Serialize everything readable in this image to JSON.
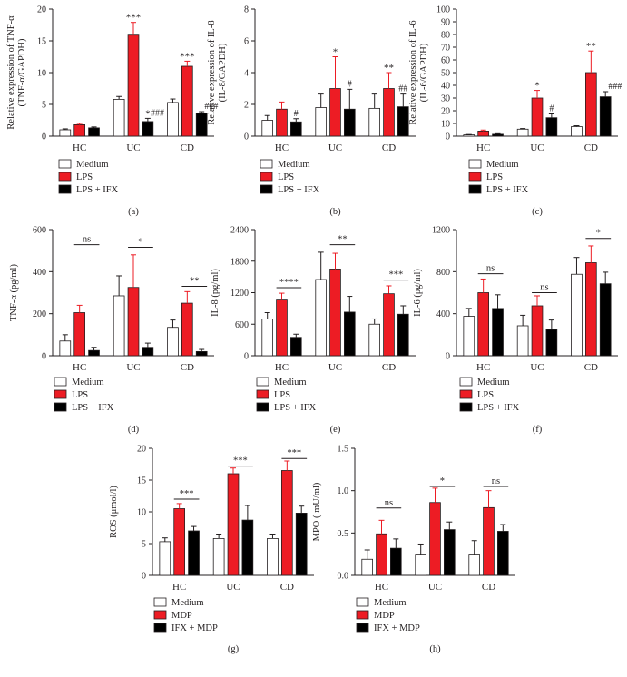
{
  "colors": {
    "medium": "#ffffff",
    "treat": "#ed1c24",
    "third": "#000000",
    "axis": "#231f20"
  },
  "chart_data": [
    {
      "panel_label": "(a)",
      "type": "bar",
      "ylabel_lines": [
        "Relative expression of TNF-α",
        "(TNF-α/GAPDH)"
      ],
      "ylim": [
        0,
        20
      ],
      "yticks": [
        0,
        5,
        10,
        15,
        20
      ],
      "categories": [
        "HC",
        "UC",
        "CD"
      ],
      "series": [
        {
          "name": "Medium",
          "values": [
            1.0,
            5.8,
            5.3
          ],
          "errors": [
            0.15,
            0.45,
            0.55
          ]
        },
        {
          "name": "LPS",
          "values": [
            1.8,
            15.9,
            11.0
          ],
          "errors": [
            0.2,
            2.0,
            0.8
          ]
        },
        {
          "name": "LPS + IFX",
          "values": [
            1.3,
            2.3,
            3.6
          ],
          "errors": [
            0.15,
            0.5,
            0.25
          ]
        }
      ],
      "annotations": [
        {
          "type": "star",
          "cat": 1,
          "series": 1,
          "text": "***"
        },
        {
          "type": "star",
          "cat": 1,
          "series": 2,
          "text": "*"
        },
        {
          "type": "star",
          "cat": 1,
          "series": 2,
          "text": "###",
          "dx": 0.06
        },
        {
          "type": "star",
          "cat": 2,
          "series": 1,
          "text": "***"
        },
        {
          "type": "star",
          "cat": 2,
          "series": 2,
          "text": "###",
          "dx": 0.06
        }
      ]
    },
    {
      "panel_label": "(b)",
      "type": "bar",
      "ylabel_lines": [
        "Relative expression of IL-8",
        "(IL-8/GAPDH)"
      ],
      "ylim": [
        0,
        8
      ],
      "yticks": [
        0,
        2,
        4,
        6,
        8
      ],
      "categories": [
        "HC",
        "UC",
        "CD"
      ],
      "series": [
        {
          "name": "Medium",
          "values": [
            1.0,
            1.8,
            1.75
          ],
          "errors": [
            0.3,
            0.85,
            0.9
          ]
        },
        {
          "name": "LPS",
          "values": [
            1.7,
            3.0,
            3.0
          ],
          "errors": [
            0.45,
            2.0,
            1.0
          ]
        },
        {
          "name": "LPS + IFX",
          "values": [
            0.9,
            1.7,
            1.85
          ],
          "errors": [
            0.2,
            1.25,
            0.8
          ]
        }
      ],
      "annotations": [
        {
          "type": "star",
          "cat": 0,
          "series": 2,
          "text": "#"
        },
        {
          "type": "star",
          "cat": 1,
          "series": 1,
          "text": "*"
        },
        {
          "type": "star",
          "cat": 1,
          "series": 2,
          "text": "#"
        },
        {
          "type": "star",
          "cat": 2,
          "series": 1,
          "text": "**"
        },
        {
          "type": "star",
          "cat": 2,
          "series": 2,
          "text": "##"
        }
      ]
    },
    {
      "panel_label": "(c)",
      "type": "bar",
      "ylabel_lines": [
        "Relative expression of IL-6",
        "(IL-6/GAPDH)"
      ],
      "ylim": [
        0,
        100
      ],
      "yticks": [
        0,
        10,
        20,
        30,
        40,
        50,
        60,
        70,
        80,
        90,
        100
      ],
      "categories": [
        "HC",
        "UC",
        "CD"
      ],
      "series": [
        {
          "name": "Medium",
          "values": [
            1.0,
            5.5,
            7.5
          ],
          "errors": [
            0.3,
            0.5,
            0.7
          ]
        },
        {
          "name": "LPS",
          "values": [
            4.0,
            30.0,
            50.0
          ],
          "errors": [
            0.8,
            6.0,
            17.0
          ]
        },
        {
          "name": "LPS + IFX",
          "values": [
            1.5,
            14.5,
            31.0
          ],
          "errors": [
            0.4,
            3.0,
            4.0
          ]
        }
      ],
      "annotations": [
        {
          "type": "star",
          "cat": 1,
          "series": 1,
          "text": "*"
        },
        {
          "type": "star",
          "cat": 1,
          "series": 2,
          "text": "#"
        },
        {
          "type": "star",
          "cat": 2,
          "series": 1,
          "text": "**"
        },
        {
          "type": "star",
          "cat": 2,
          "series": 2,
          "text": "###",
          "dx": 0.06
        }
      ]
    },
    {
      "panel_label": "(d)",
      "type": "bar",
      "ylabel_lines": [
        "TNF-α (pg/ml)"
      ],
      "ylim": [
        0,
        600
      ],
      "yticks": [
        0,
        200,
        400,
        600
      ],
      "categories": [
        "HC",
        "UC",
        "CD"
      ],
      "series": [
        {
          "name": "Medium",
          "values": [
            70,
            285,
            135
          ],
          "errors": [
            30,
            95,
            35
          ]
        },
        {
          "name": "LPS",
          "values": [
            205,
            325,
            250
          ],
          "errors": [
            35,
            155,
            55
          ]
        },
        {
          "name": "LPS + IFX",
          "values": [
            25,
            40,
            20
          ],
          "errors": [
            15,
            20,
            10
          ]
        }
      ],
      "annotations": [
        {
          "type": "bracket",
          "cat": 0,
          "text": "ns",
          "level": 0.88
        },
        {
          "type": "bracket",
          "cat": 1,
          "text": "*",
          "level": 0.86
        },
        {
          "type": "bracket",
          "cat": 2,
          "text": "**",
          "level": 0.55
        }
      ]
    },
    {
      "panel_label": "(e)",
      "type": "bar",
      "ylabel_lines": [
        "IL-8 (pg/ml)"
      ],
      "ylim": [
        0,
        2400
      ],
      "yticks": [
        0,
        600,
        1200,
        1800,
        2400
      ],
      "categories": [
        "HC",
        "UC",
        "CD"
      ],
      "series": [
        {
          "name": "Medium",
          "values": [
            700,
            1450,
            600
          ],
          "errors": [
            120,
            520,
            100
          ]
        },
        {
          "name": "LPS",
          "values": [
            1060,
            1650,
            1180
          ],
          "errors": [
            130,
            300,
            150
          ]
        },
        {
          "name": "LPS + IFX",
          "values": [
            350,
            830,
            790
          ],
          "errors": [
            60,
            300,
            160
          ]
        }
      ],
      "annotations": [
        {
          "type": "bracket",
          "cat": 0,
          "text": "****",
          "level": 0.54
        },
        {
          "type": "bracket",
          "cat": 1,
          "text": "**",
          "level": 0.88
        },
        {
          "type": "bracket",
          "cat": 2,
          "text": "***",
          "level": 0.6
        }
      ]
    },
    {
      "panel_label": "(f)",
      "type": "bar",
      "ylabel_lines": [
        "IL-6 (pg/ml)"
      ],
      "ylim": [
        0,
        1200
      ],
      "yticks": [
        0,
        400,
        800,
        1200
      ],
      "categories": [
        "HC",
        "UC",
        "CD"
      ],
      "series": [
        {
          "name": "Medium",
          "values": [
            375,
            285,
            775
          ],
          "errors": [
            75,
            100,
            160
          ]
        },
        {
          "name": "LPS",
          "values": [
            600,
            475,
            885
          ],
          "errors": [
            130,
            95,
            160
          ]
        },
        {
          "name": "LPS + IFX",
          "values": [
            450,
            250,
            685
          ],
          "errors": [
            130,
            90,
            110
          ]
        }
      ],
      "annotations": [
        {
          "type": "bracket",
          "cat": 0,
          "text": "ns",
          "level": 0.65
        },
        {
          "type": "bracket",
          "cat": 1,
          "text": "ns",
          "level": 0.5
        },
        {
          "type": "bracket",
          "cat": 2,
          "text": "*",
          "level": 0.93
        }
      ]
    },
    {
      "panel_label": "(g)",
      "type": "bar",
      "ylabel_lines": [
        "ROS (μmol/l)"
      ],
      "ylim": [
        0,
        20
      ],
      "yticks": [
        0,
        5,
        10,
        15,
        20
      ],
      "categories": [
        "HC",
        "UC",
        "CD"
      ],
      "series": [
        {
          "name": "Medium",
          "values": [
            5.3,
            5.8,
            5.8
          ],
          "errors": [
            0.6,
            0.7,
            0.7
          ]
        },
        {
          "name": "MDP",
          "values": [
            10.5,
            16.0,
            16.5
          ],
          "errors": [
            0.8,
            0.9,
            1.5
          ]
        },
        {
          "name": "IFX + MDP",
          "values": [
            7.0,
            8.7,
            9.8
          ],
          "errors": [
            0.7,
            2.3,
            1.1
          ]
        }
      ],
      "annotations": [
        {
          "type": "bracket",
          "cat": 0,
          "text": "***",
          "level": 0.6
        },
        {
          "type": "bracket",
          "cat": 1,
          "text": "***",
          "level": 0.86
        },
        {
          "type": "bracket",
          "cat": 2,
          "text": "***",
          "level": 0.92
        }
      ]
    },
    {
      "panel_label": "(h)",
      "type": "bar",
      "ylabel_lines": [
        "MPO ( mU/ml)"
      ],
      "ylim": [
        0,
        1.5
      ],
      "yticks": [
        0,
        0.5,
        1.0,
        1.5
      ],
      "ytick_labels": [
        "0.0",
        "0.5",
        "1.0",
        "1.5"
      ],
      "categories": [
        "HC",
        "UC",
        "CD"
      ],
      "series": [
        {
          "name": "Medium",
          "values": [
            0.19,
            0.24,
            0.24
          ],
          "errors": [
            0.11,
            0.13,
            0.17
          ]
        },
        {
          "name": "MDP",
          "values": [
            0.49,
            0.86,
            0.8
          ],
          "errors": [
            0.16,
            0.17,
            0.2
          ]
        },
        {
          "name": "IFX + MDP",
          "values": [
            0.32,
            0.54,
            0.52
          ],
          "errors": [
            0.11,
            0.09,
            0.08
          ]
        }
      ],
      "annotations": [
        {
          "type": "bracket",
          "cat": 0,
          "text": "ns",
          "level": 0.53
        },
        {
          "type": "bracket",
          "cat": 1,
          "text": "*",
          "level": 0.7
        },
        {
          "type": "bracket",
          "cat": 2,
          "text": "ns",
          "level": 0.7
        }
      ]
    }
  ]
}
